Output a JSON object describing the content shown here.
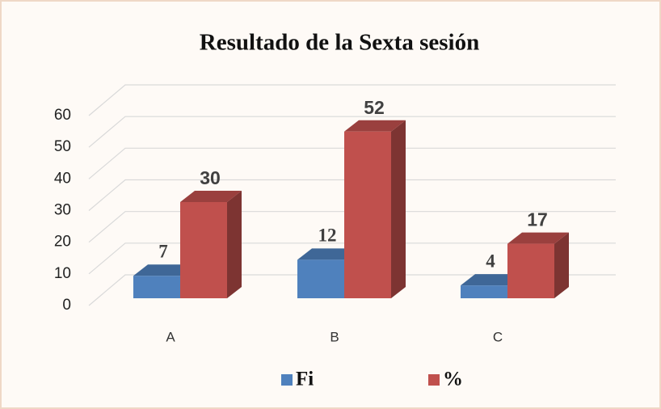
{
  "chart_data": {
    "type": "bar",
    "title": "Resultado de la Sexta sesión",
    "categories": [
      "A",
      "B",
      "C"
    ],
    "series": [
      {
        "name": "Fi",
        "color": "#4f81bd",
        "values": [
          7,
          12,
          4
        ]
      },
      {
        "name": "%",
        "color": "#c0504d",
        "values": [
          30,
          52,
          17
        ]
      }
    ],
    "ylim": [
      0,
      60
    ],
    "yticks": [
      0,
      10,
      20,
      30,
      40,
      50,
      60
    ],
    "grid": true,
    "legend": "bottom"
  }
}
